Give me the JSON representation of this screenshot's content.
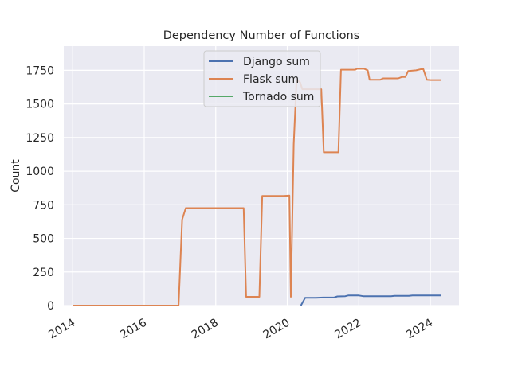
{
  "chart_data": {
    "type": "line",
    "title": "Dependency Number of Functions",
    "xlabel": "",
    "ylabel": "Count",
    "xlim": [
      2013.75,
      2024.8
    ],
    "ylim": [
      0,
      1930
    ],
    "x_ticks": [
      2014,
      2016,
      2018,
      2020,
      2022,
      2024
    ],
    "y_ticks": [
      0,
      250,
      500,
      750,
      1000,
      1250,
      1500,
      1750
    ],
    "grid": true,
    "legend_position": "upper center",
    "background_color": "#eaeaf2",
    "series": [
      {
        "name": "Django sum",
        "color": "#4c72b0",
        "points": [
          [
            2020.38,
            0
          ],
          [
            2020.5,
            58
          ],
          [
            2020.8,
            58
          ],
          [
            2021.0,
            60
          ],
          [
            2021.3,
            60
          ],
          [
            2021.4,
            68
          ],
          [
            2021.62,
            70
          ],
          [
            2021.7,
            75
          ],
          [
            2022.0,
            75
          ],
          [
            2022.12,
            70
          ],
          [
            2022.5,
            70
          ],
          [
            2022.9,
            70
          ],
          [
            2023.0,
            72
          ],
          [
            2023.4,
            72
          ],
          [
            2023.5,
            75
          ],
          [
            2024.0,
            75
          ],
          [
            2024.3,
            75
          ]
        ]
      },
      {
        "name": "Flask sum",
        "color": "#dd8452",
        "points": [
          [
            2014.0,
            0
          ],
          [
            2016.96,
            0
          ],
          [
            2017.06,
            640
          ],
          [
            2017.16,
            725
          ],
          [
            2018.2,
            725
          ],
          [
            2018.78,
            725
          ],
          [
            2018.85,
            65
          ],
          [
            2019.22,
            65
          ],
          [
            2019.3,
            815
          ],
          [
            2019.9,
            815
          ],
          [
            2020.06,
            818
          ],
          [
            2020.1,
            65
          ],
          [
            2020.18,
            1200
          ],
          [
            2020.26,
            1680
          ],
          [
            2020.36,
            1660
          ],
          [
            2020.42,
            1610
          ],
          [
            2020.55,
            1610
          ],
          [
            2020.95,
            1610
          ],
          [
            2021.02,
            1140
          ],
          [
            2021.43,
            1140
          ],
          [
            2021.5,
            1755
          ],
          [
            2021.7,
            1755
          ],
          [
            2021.9,
            1755
          ],
          [
            2021.95,
            1762
          ],
          [
            2022.15,
            1762
          ],
          [
            2022.25,
            1750
          ],
          [
            2022.3,
            1680
          ],
          [
            2022.6,
            1680
          ],
          [
            2022.68,
            1690
          ],
          [
            2023.1,
            1690
          ],
          [
            2023.2,
            1700
          ],
          [
            2023.3,
            1700
          ],
          [
            2023.38,
            1745
          ],
          [
            2023.6,
            1750
          ],
          [
            2023.8,
            1762
          ],
          [
            2023.9,
            1680
          ],
          [
            2024.0,
            1678
          ],
          [
            2024.3,
            1678
          ]
        ]
      },
      {
        "name": "Tornado sum",
        "color": "#55a868",
        "points": []
      }
    ]
  }
}
